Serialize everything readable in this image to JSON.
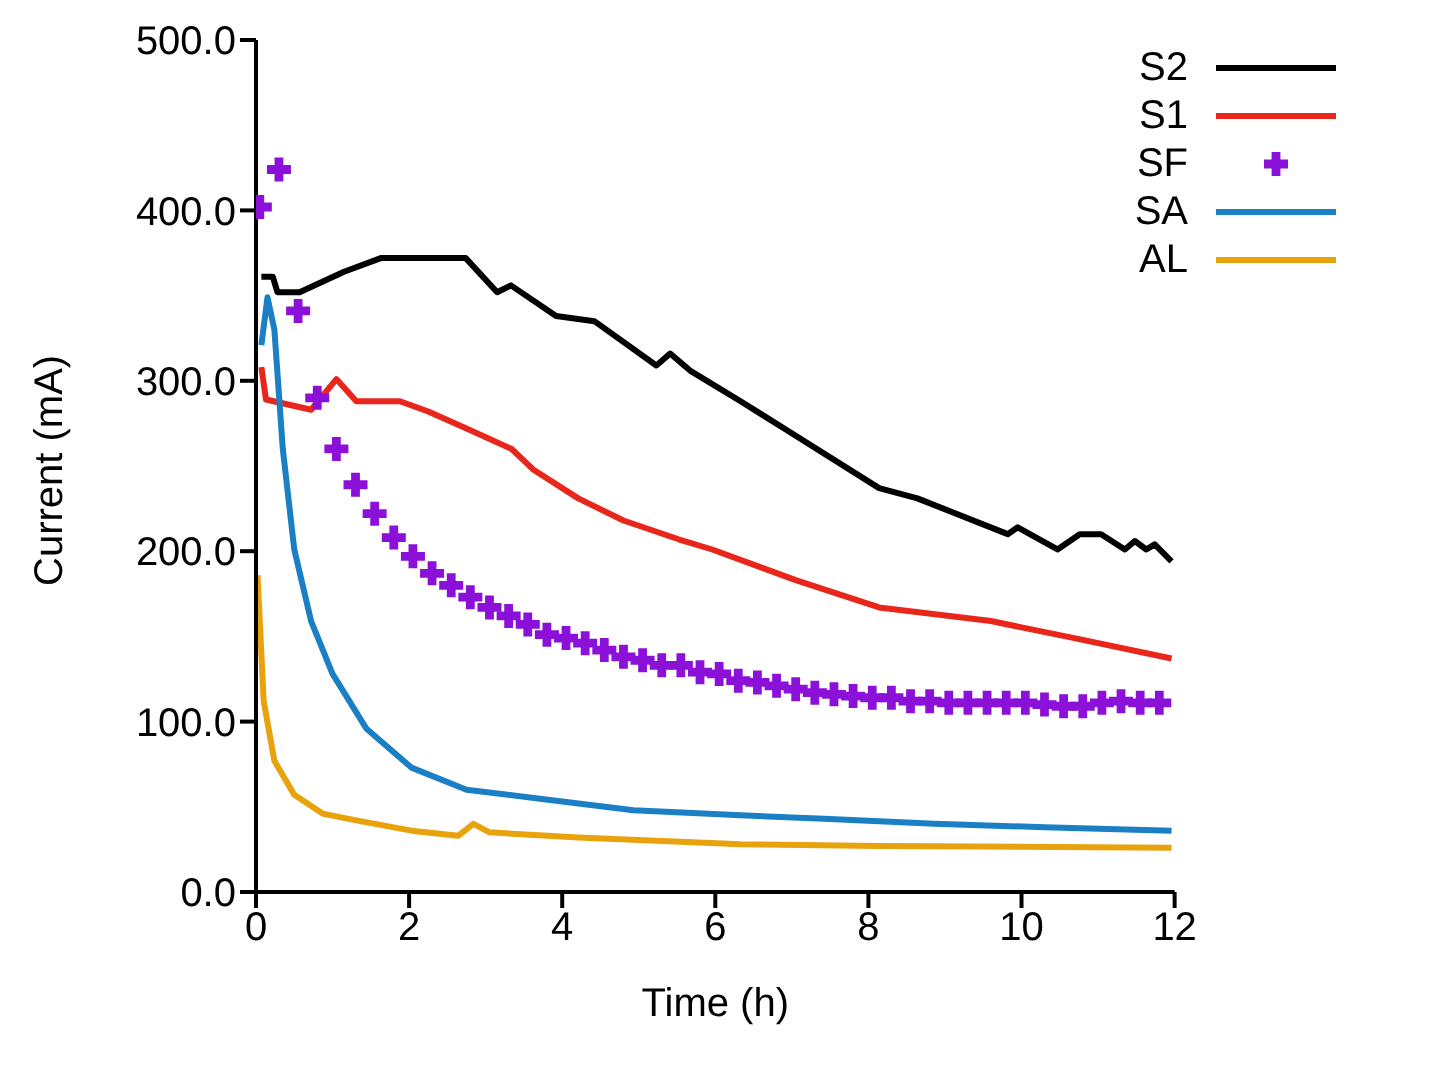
{
  "chart_data": {
    "type": "line",
    "xlabel": "Time (h)",
    "ylabel": "Current (mA)",
    "xlim": [
      0,
      12
    ],
    "xticks": [
      0,
      2,
      4,
      6,
      8,
      10,
      12
    ],
    "ylim": [
      0,
      500
    ],
    "yticks": [
      {
        "value": 0,
        "label": "0.0"
      },
      {
        "value": 100,
        "label": "100.0"
      },
      {
        "value": 200,
        "label": "200.0"
      },
      {
        "value": 300,
        "label": "300.0"
      },
      {
        "value": 400,
        "label": "400.0"
      },
      {
        "value": 500,
        "label": "500.0"
      }
    ],
    "grid": false,
    "legend": "top right",
    "marker": "none",
    "line_style": "solid",
    "series": [
      {
        "name": "S2",
        "color": "#000000",
        "x": [
          0.07,
          0.22,
          0.28,
          0.57,
          1.15,
          1.63,
          2.74,
          3.15,
          3.33,
          3.92,
          4.42,
          5.23,
          5.41,
          5.67,
          6.33,
          6.9,
          8.14,
          8.64,
          9.82,
          9.95,
          10.47,
          10.76,
          11.04,
          11.35,
          11.48,
          11.63,
          11.74,
          11.96
        ],
        "values": [
          361,
          361,
          352,
          352,
          364,
          372,
          372,
          352,
          356,
          338,
          335,
          309,
          316,
          306,
          288,
          272,
          237,
          231,
          210,
          214,
          201,
          210,
          210,
          201,
          206,
          201,
          204,
          194
        ]
      },
      {
        "name": "S1",
        "color": "#e8261c",
        "x": [
          0.07,
          0.13,
          0.72,
          1.05,
          1.31,
          1.88,
          2.25,
          2.75,
          3.34,
          3.62,
          4.21,
          4.8,
          5.52,
          5.96,
          7.05,
          8.14,
          9.6,
          10.69,
          11.96
        ],
        "values": [
          308,
          289,
          283,
          301,
          288,
          288,
          282,
          272,
          260,
          248,
          231,
          218,
          207,
          201,
          183,
          167,
          159,
          149,
          137
        ]
      },
      {
        "name": "SF",
        "type": "scatter",
        "marker": "cross",
        "color": "#8b10d8",
        "x": [
          0.05,
          0.3,
          0.55,
          0.8,
          1.05,
          1.3,
          1.55,
          1.8,
          2.05,
          2.3,
          2.55,
          2.8,
          3.05,
          3.3,
          3.55,
          3.8,
          4.05,
          4.3,
          4.55,
          4.8,
          5.05,
          5.3,
          5.55,
          5.8,
          6.05,
          6.3,
          6.55,
          6.8,
          7.05,
          7.3,
          7.55,
          7.8,
          8.05,
          8.3,
          8.55,
          8.8,
          9.05,
          9.3,
          9.55,
          9.8,
          10.05,
          10.3,
          10.55,
          10.8,
          11.05,
          11.3,
          11.55,
          11.8
        ],
        "values": [
          402,
          424,
          341,
          290,
          260,
          239,
          222,
          208,
          197,
          187,
          180,
          173,
          167,
          162,
          157,
          151,
          149,
          146,
          142,
          138,
          136,
          133,
          133,
          129,
          128,
          124,
          123,
          121,
          119,
          117,
          116,
          115,
          114,
          114,
          112,
          112,
          111,
          111,
          111,
          111,
          111,
          110,
          109,
          109,
          111,
          112,
          111,
          111
        ]
      },
      {
        "name": "SA",
        "color": "#1a7fc4",
        "x": [
          0.07,
          0.15,
          0.24,
          0.35,
          0.5,
          0.72,
          1.0,
          1.44,
          2.03,
          2.75,
          3.84,
          4.93,
          6.33,
          7.42,
          8.86,
          10.3,
          11.96
        ],
        "values": [
          321,
          349,
          330,
          260,
          201,
          159,
          128,
          96,
          73,
          60,
          54,
          48,
          45,
          43,
          40,
          38,
          36
        ]
      },
      {
        "name": "AL",
        "color": "#e8a20c",
        "x": [
          0.02,
          0.1,
          0.24,
          0.5,
          0.87,
          1.31,
          2.03,
          2.64,
          2.84,
          3.05,
          4.21,
          6.33,
          8.14,
          11.96
        ],
        "values": [
          186,
          112,
          77,
          57,
          46,
          42,
          36,
          33,
          40,
          35,
          32,
          28,
          27,
          26
        ]
      }
    ]
  }
}
